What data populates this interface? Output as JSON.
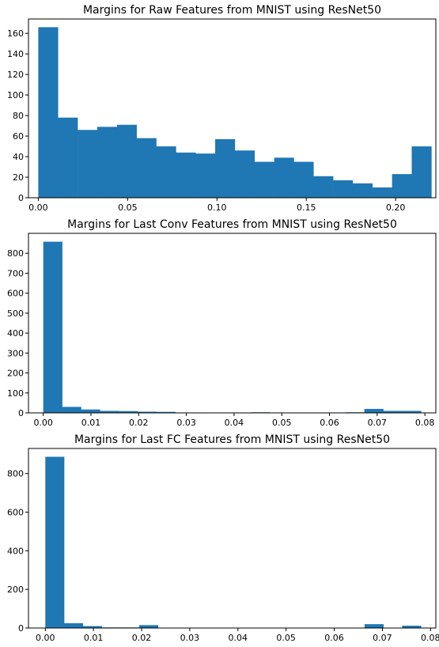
{
  "chart_data": [
    {
      "type": "bar",
      "title": "Margins for Raw Features from MNIST using ResNet50",
      "xlabel": "",
      "ylabel": "",
      "bin_edges": [
        0.0,
        0.011,
        0.022,
        0.033,
        0.044,
        0.055,
        0.066,
        0.077,
        0.088,
        0.099,
        0.11,
        0.121,
        0.132,
        0.143,
        0.154,
        0.165,
        0.176,
        0.187,
        0.198,
        0.209,
        0.22
      ],
      "values": [
        166,
        78,
        66,
        69,
        71,
        58,
        50,
        44,
        43,
        57,
        46,
        35,
        39,
        35,
        21,
        17,
        14,
        10,
        23,
        50
      ],
      "xlim": [
        -0.0055,
        0.2225
      ],
      "ylim": [
        0,
        174
      ],
      "xticks": [
        0.0,
        0.05,
        0.1,
        0.15,
        0.2
      ],
      "xtick_labels": [
        "0.00",
        "0.05",
        "0.10",
        "0.15",
        "0.20"
      ],
      "yticks": [
        0,
        20,
        40,
        60,
        80,
        100,
        120,
        140,
        160
      ],
      "ytick_labels": [
        "0",
        "20",
        "40",
        "60",
        "80",
        "100",
        "120",
        "140",
        "160"
      ],
      "grid": false,
      "bar_color": "#1f77b4"
    },
    {
      "type": "bar",
      "title": "Margins for Last Conv Features from MNIST using ResNet50",
      "xlabel": "",
      "ylabel": "",
      "bin_edges": [
        0.0,
        0.00396,
        0.00792,
        0.01188,
        0.01584,
        0.0198,
        0.02376,
        0.02772,
        0.03168,
        0.03564,
        0.0396,
        0.04356,
        0.04752,
        0.05148,
        0.05544,
        0.0594,
        0.06336,
        0.06732,
        0.07128,
        0.07524,
        0.0792
      ],
      "values": [
        858,
        30,
        17,
        10,
        9,
        6,
        5,
        0,
        0,
        2,
        0,
        3,
        0,
        0,
        0,
        2,
        3,
        20,
        10,
        10
      ],
      "xlim": [
        -0.0031,
        0.0823
      ],
      "ylim": [
        0,
        900
      ],
      "xticks": [
        0.0,
        0.01,
        0.02,
        0.03,
        0.04,
        0.05,
        0.06,
        0.07,
        0.08
      ],
      "xtick_labels": [
        "0.00",
        "0.01",
        "0.02",
        "0.03",
        "0.04",
        "0.05",
        "0.06",
        "0.07",
        "0.08"
      ],
      "yticks": [
        0,
        100,
        200,
        300,
        400,
        500,
        600,
        700,
        800
      ],
      "ytick_labels": [
        "0",
        "100",
        "200",
        "300",
        "400",
        "500",
        "600",
        "700",
        "800"
      ],
      "grid": false,
      "bar_color": "#1f77b4"
    },
    {
      "type": "bar",
      "title": "Margins for Last FC Features from MNIST using ResNet50",
      "xlabel": "",
      "ylabel": "",
      "bin_edges": [
        0.0,
        0.0039,
        0.0078,
        0.0117,
        0.0156,
        0.0195,
        0.0234,
        0.0273,
        0.0312,
        0.0351,
        0.039,
        0.0429,
        0.0468,
        0.0507,
        0.0546,
        0.0585,
        0.0624,
        0.0663,
        0.0702,
        0.0741,
        0.078
      ],
      "values": [
        887,
        25,
        10,
        3,
        3,
        15,
        0,
        0,
        0,
        2,
        0,
        0,
        0,
        0,
        0,
        0,
        0,
        20,
        2,
        12
      ],
      "xlim": [
        -0.0035,
        0.0811
      ],
      "ylim": [
        0,
        930
      ],
      "xticks": [
        0.0,
        0.01,
        0.02,
        0.03,
        0.04,
        0.05,
        0.06,
        0.07,
        0.08
      ],
      "xtick_labels": [
        "0.00",
        "0.01",
        "0.02",
        "0.03",
        "0.04",
        "0.05",
        "0.06",
        "0.07",
        "0.08"
      ],
      "yticks": [
        0,
        200,
        400,
        600,
        800
      ],
      "ytick_labels": [
        "0",
        "200",
        "400",
        "600",
        "800"
      ],
      "grid": false,
      "bar_color": "#1f77b4"
    }
  ]
}
